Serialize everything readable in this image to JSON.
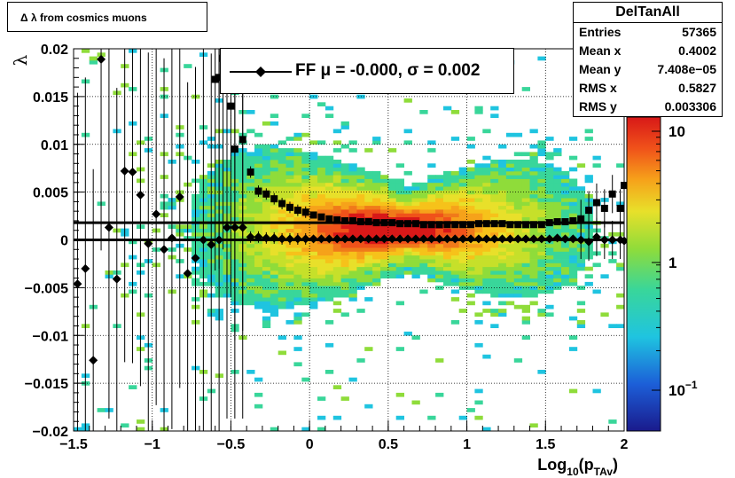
{
  "title": "Δ λ from cosmics muons",
  "stats": {
    "name": "DelTanAll",
    "rows": [
      {
        "label": "Entries",
        "value": "57365"
      },
      {
        "label": "Mean x",
        "value": "0.4002"
      },
      {
        "label": "Mean y",
        "value": "7.408e−05"
      },
      {
        "label": "RMS x",
        "value": "0.5827"
      },
      {
        "label": "RMS y",
        "value": "0.003306"
      }
    ]
  },
  "legend": {
    "text": "FF μ = -0.000, σ =   0.002"
  },
  "colors": {
    "marker": "#000000",
    "fit_line": "#000000"
  },
  "chart_data": {
    "type": "heatmap",
    "title": "Δ λ from cosmics muons",
    "xlabel": "Log10(pTAv)",
    "ylabel": "λ",
    "xlim": [
      -1.5,
      2.0
    ],
    "ylim": [
      -0.02,
      0.02
    ],
    "x_ticks": [
      "−1.5",
      "−1",
      "−0.5",
      "0",
      "0.5",
      "1",
      "1.5",
      "2"
    ],
    "y_ticks": [
      "−0.02",
      "−0.015",
      "−0.01",
      "−0.005",
      "0",
      "0.005",
      "0.01",
      "0.015",
      "0.02"
    ],
    "z_scale": "log",
    "z_ticks": [
      "10",
      "1",
      "10−1"
    ],
    "grid": true,
    "fit_lines": [
      0.0018,
      0.0
    ],
    "series": [
      {
        "marker": "square",
        "points": [
          [
            -0.6,
            0.0168
          ],
          [
            -0.575,
            0.017
          ],
          [
            -0.55,
            0.019
          ],
          [
            -0.5,
            0.014
          ],
          [
            -0.475,
            0.0095
          ],
          [
            -0.425,
            0.0105
          ],
          [
            -0.375,
            0.0071
          ],
          [
            -0.325,
            0.0051
          ],
          [
            -0.275,
            0.0048
          ],
          [
            -0.225,
            0.0043
          ],
          [
            -0.175,
            0.0038
          ],
          [
            -0.125,
            0.0034
          ],
          [
            -0.075,
            0.0031
          ],
          [
            -0.025,
            0.0029
          ],
          [
            0.025,
            0.0026
          ],
          [
            0.075,
            0.0024
          ],
          [
            0.125,
            0.0022
          ],
          [
            0.175,
            0.0021
          ],
          [
            0.225,
            0.002
          ],
          [
            0.275,
            0.002
          ],
          [
            0.325,
            0.0019
          ],
          [
            0.375,
            0.0019
          ],
          [
            0.425,
            0.0018
          ],
          [
            0.475,
            0.0018
          ],
          [
            0.525,
            0.0018
          ],
          [
            0.575,
            0.0017
          ],
          [
            0.625,
            0.0017
          ],
          [
            0.675,
            0.0017
          ],
          [
            0.725,
            0.0016
          ],
          [
            0.775,
            0.0016
          ],
          [
            0.825,
            0.0016
          ],
          [
            0.875,
            0.0016
          ],
          [
            0.925,
            0.0016
          ],
          [
            0.975,
            0.0016
          ],
          [
            1.025,
            0.0016
          ],
          [
            1.075,
            0.0017
          ],
          [
            1.125,
            0.0017
          ],
          [
            1.175,
            0.0017
          ],
          [
            1.225,
            0.0017
          ],
          [
            1.275,
            0.0016
          ],
          [
            1.325,
            0.0016
          ],
          [
            1.375,
            0.0016
          ],
          [
            1.425,
            0.0016
          ],
          [
            1.475,
            0.0016
          ],
          [
            1.525,
            0.0018
          ],
          [
            1.575,
            0.0019
          ],
          [
            1.625,
            0.0019
          ],
          [
            1.675,
            0.002
          ],
          [
            1.725,
            0.0022
          ],
          [
            1.775,
            0.0031
          ],
          [
            1.825,
            0.0039
          ],
          [
            1.875,
            0.0033
          ],
          [
            1.925,
            0.0048
          ],
          [
            1.975,
            0.0033
          ],
          [
            2.0,
            0.0057
          ]
        ]
      },
      {
        "marker": "diamond",
        "points": [
          [
            -1.475,
            -0.0046
          ],
          [
            -1.425,
            -0.003
          ],
          [
            -1.375,
            -0.0126
          ],
          [
            -1.325,
            0.0189
          ],
          [
            -1.275,
            0.0013
          ],
          [
            -1.225,
            -0.0041
          ],
          [
            -1.175,
            0.0072
          ],
          [
            -1.125,
            0.0071
          ],
          [
            -1.075,
            0.0047
          ],
          [
            -1.025,
            -0.0004
          ],
          [
            -0.975,
            0.0027
          ],
          [
            -0.925,
            -0.001
          ],
          [
            -0.875,
            0.0002
          ],
          [
            -0.825,
            0.0045
          ],
          [
            -0.775,
            -0.0035
          ],
          [
            -0.725,
            -0.0019
          ],
          [
            -0.675,
            0.0
          ],
          [
            -0.625,
            -0.0005
          ],
          [
            -0.575,
            0.0
          ],
          [
            -0.525,
            0.0013
          ],
          [
            -0.475,
            0.0013
          ],
          [
            -0.425,
            0.0013
          ],
          [
            -0.375,
            0.0003
          ],
          [
            -0.325,
            0.0003
          ],
          [
            -0.275,
            0.0002
          ],
          [
            -0.225,
            0.0002
          ],
          [
            -0.175,
            0.0001
          ],
          [
            -0.125,
            0.0001
          ],
          [
            -0.075,
            0.0001
          ],
          [
            -0.025,
            0.0001
          ],
          [
            0.025,
            0.0001
          ],
          [
            0.075,
            0.0001
          ],
          [
            0.125,
            0.0001
          ],
          [
            0.175,
            0.0001
          ],
          [
            0.225,
            0.0001
          ],
          [
            0.275,
            0.0001
          ],
          [
            0.325,
            0.0001
          ],
          [
            0.375,
            0.0001
          ],
          [
            0.425,
            0.0001
          ],
          [
            0.475,
            0.0001
          ],
          [
            0.525,
            0.0001
          ],
          [
            0.575,
            0.0001
          ],
          [
            0.625,
            0.0001
          ],
          [
            0.675,
            0.0001
          ],
          [
            0.725,
            0.0001
          ],
          [
            0.775,
            0.0001
          ],
          [
            0.825,
            0.0001
          ],
          [
            0.875,
            0.0001
          ],
          [
            0.925,
            0.0001
          ],
          [
            0.975,
            0.0001
          ],
          [
            1.025,
            0.0001
          ],
          [
            1.075,
            0.0001
          ],
          [
            1.125,
            0.0001
          ],
          [
            1.175,
            0.0001
          ],
          [
            1.225,
            0.0001
          ],
          [
            1.275,
            0.0001
          ],
          [
            1.325,
            0.0001
          ],
          [
            1.375,
            0.0001
          ],
          [
            1.425,
            0.0001
          ],
          [
            1.475,
            0.0001
          ],
          [
            1.525,
            0.0001
          ],
          [
            1.575,
            0.0002
          ],
          [
            1.625,
            0.0001
          ],
          [
            1.675,
            0.0001
          ],
          [
            1.725,
            0.0
          ],
          [
            1.775,
            -0.0002
          ],
          [
            1.825,
            0.0003
          ],
          [
            1.875,
            0.0
          ],
          [
            1.925,
            0.0
          ],
          [
            1.975,
            0.0
          ],
          [
            2.0,
            -0.0001
          ]
        ]
      }
    ]
  }
}
